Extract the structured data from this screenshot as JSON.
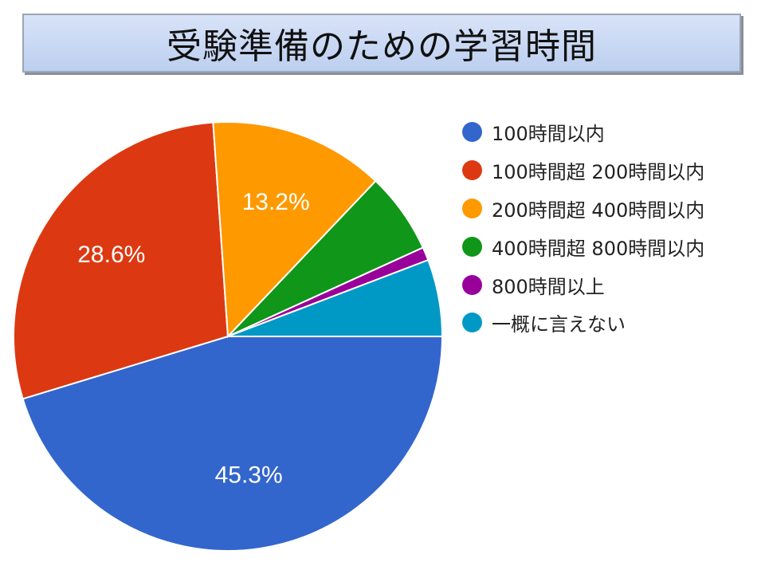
{
  "title": "受験準備のための学習時間",
  "chart_data": {
    "type": "pie",
    "title": "受験準備のための学習時間",
    "legend_position": "right",
    "start_angle": "3 o'clock, counter-clockwise is clockwise",
    "slices": [
      {
        "label": "100時間以内",
        "value": 45.3,
        "color": "#3366cc",
        "data_label": "45.3%"
      },
      {
        "label": "100時間超 200時間以内",
        "value": 28.6,
        "color": "#dc3912",
        "data_label": "28.6%"
      },
      {
        "label": "200時間超 400時間以内",
        "value": 13.2,
        "color": "#ff9900",
        "data_label": "13.2%"
      },
      {
        "label": "400時間超 800時間以内",
        "value": 6.1,
        "color": "#109618",
        "data_label": ""
      },
      {
        "label": "800時間以上",
        "value": 1.0,
        "color": "#990099",
        "data_label": ""
      },
      {
        "label": "一概に言えない",
        "value": 5.8,
        "color": "#0099c6",
        "data_label": ""
      }
    ]
  }
}
